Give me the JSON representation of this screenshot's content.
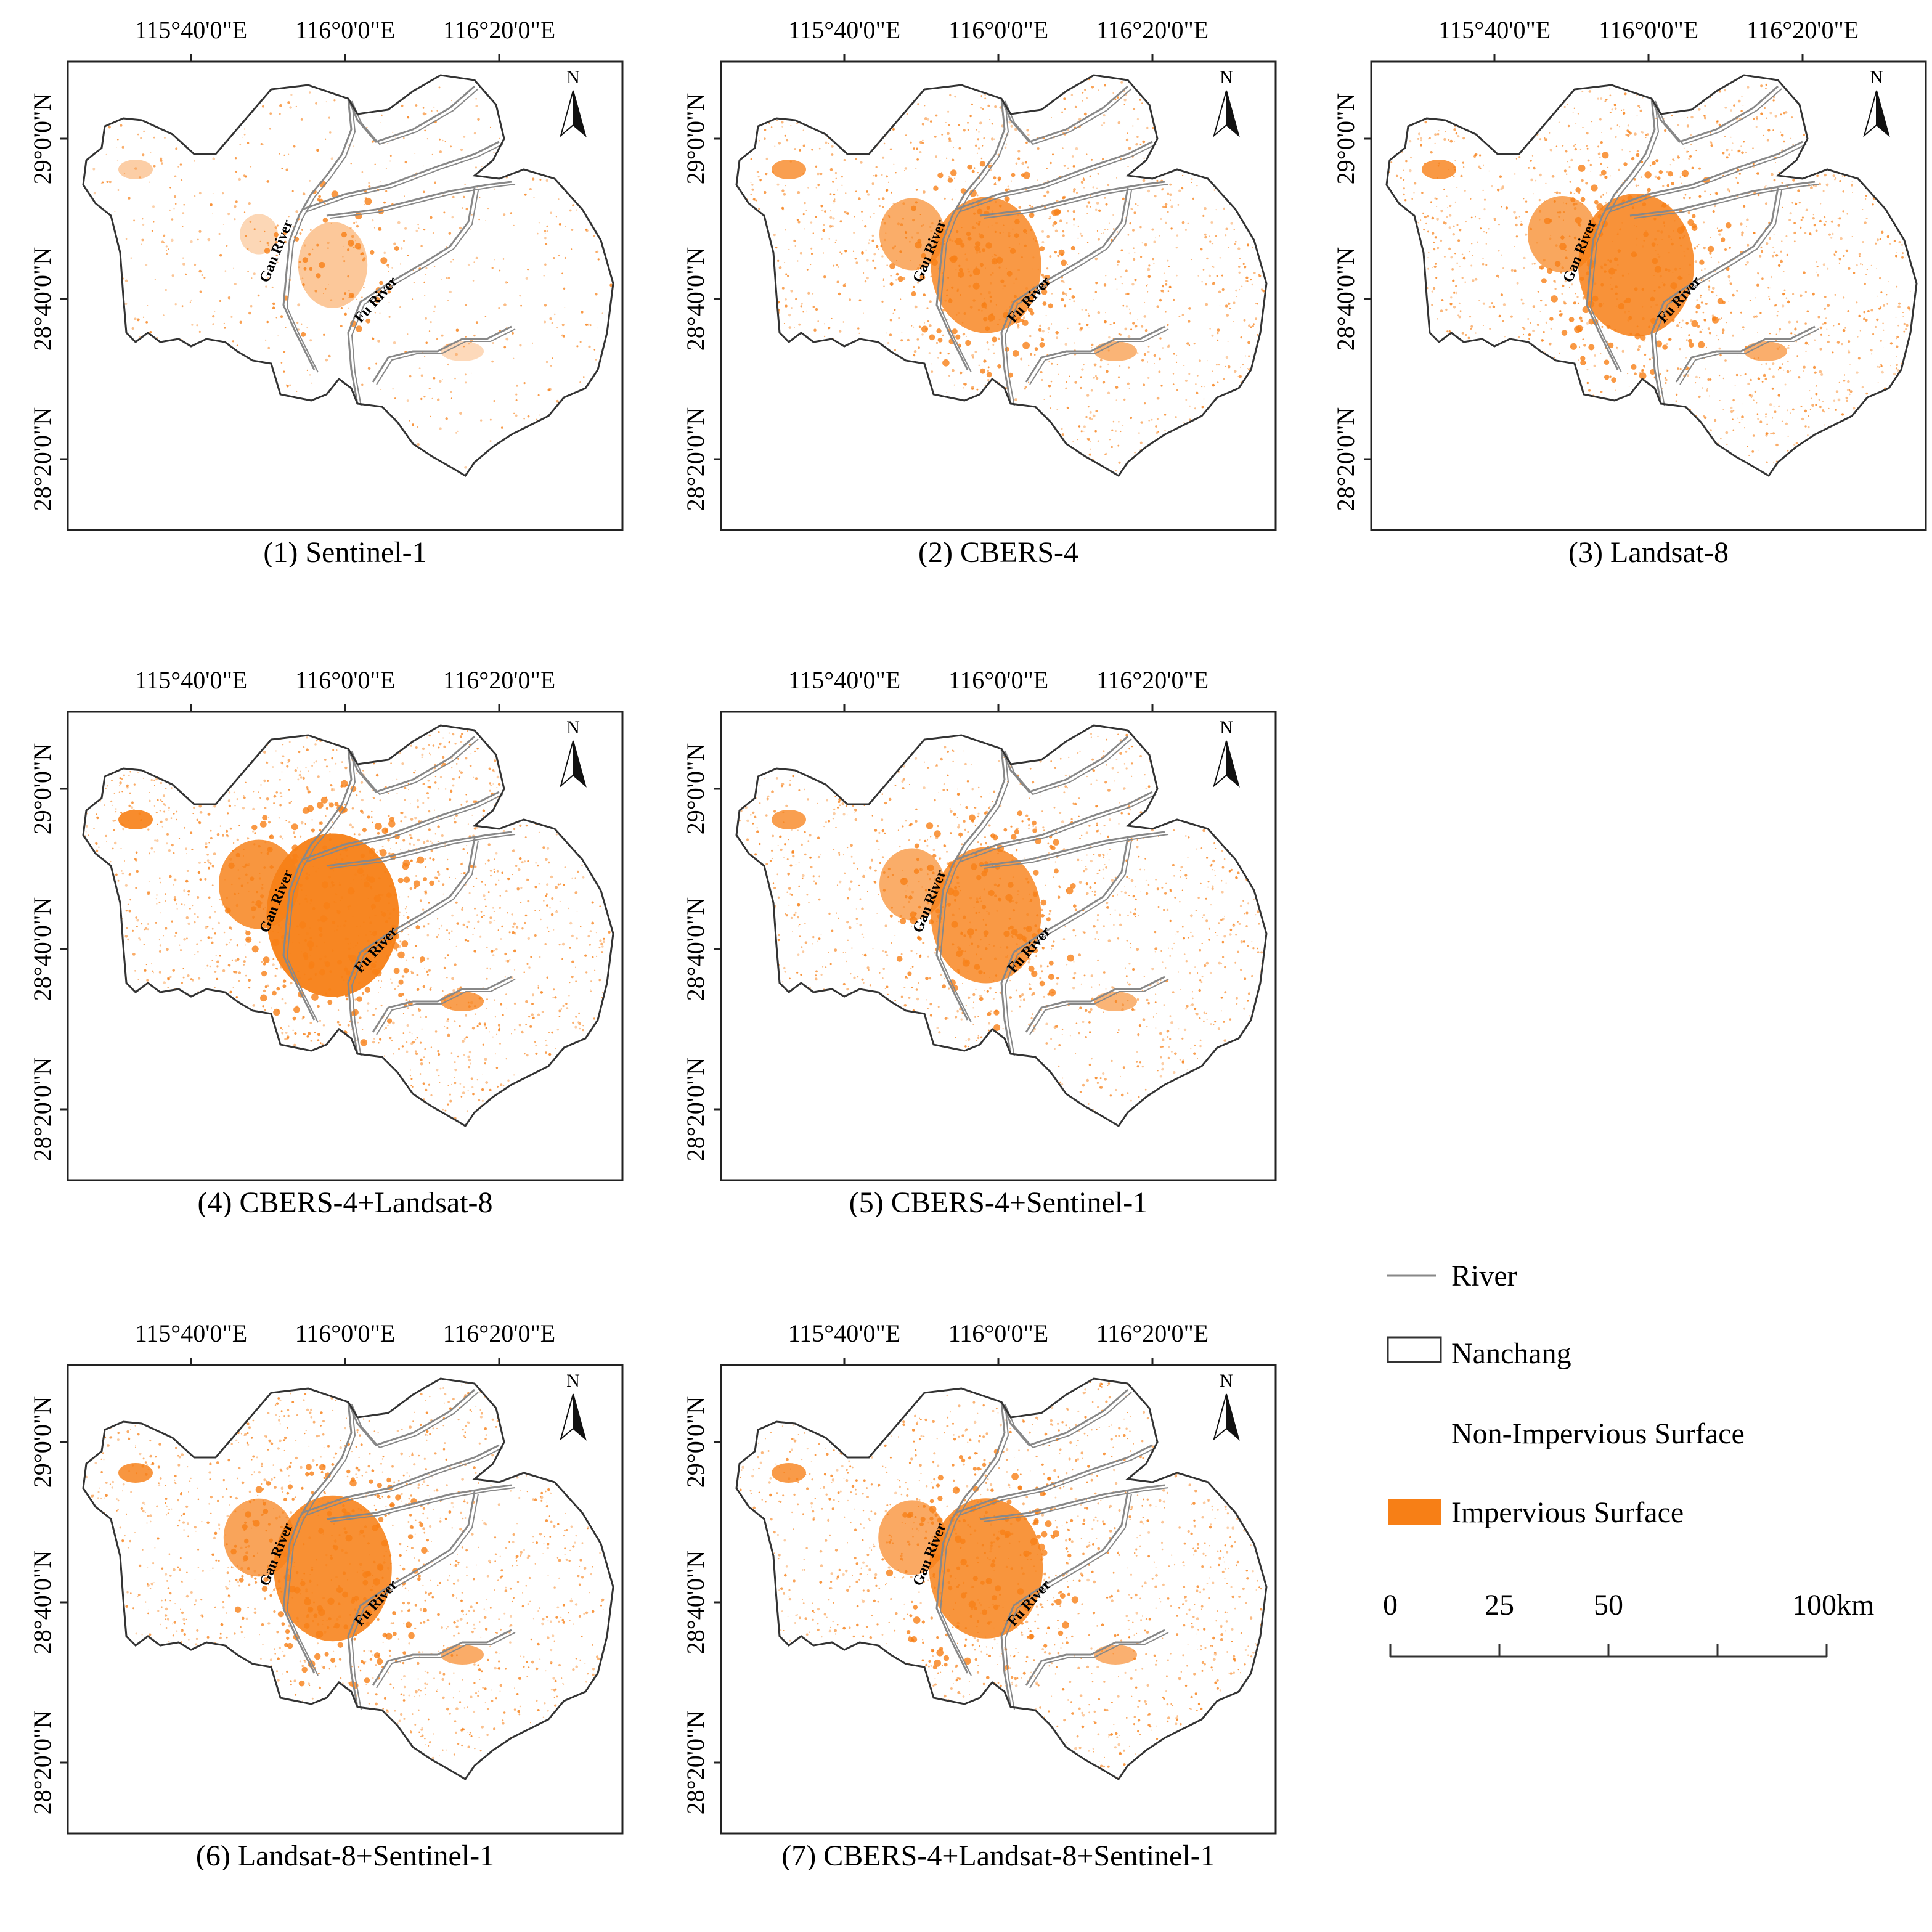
{
  "figure": {
    "lon_ticks": [
      "115°40'0\"E",
      "116°0'0\"E",
      "116°20'0\"E"
    ],
    "lat_ticks": [
      "29°0'0\"N",
      "28°40'0\"N",
      "28°20'0\"N"
    ],
    "north_label": "N",
    "river_labels": {
      "gan": "Gan River",
      "fu": "Fu River"
    },
    "colors": {
      "impervious": "#f77f16",
      "river": "#888888",
      "boundary": "#333333"
    }
  },
  "panels": [
    {
      "id": 1,
      "caption": "(1) Sentinel-1",
      "impervious_density": 0.18
    },
    {
      "id": 2,
      "caption": "(2) CBERS-4",
      "impervious_density": 0.55
    },
    {
      "id": 3,
      "caption": "(3) Landsat-8",
      "impervious_density": 0.6
    },
    {
      "id": 4,
      "caption": "(4) CBERS-4+Landsat-8",
      "impervious_density": 0.75
    },
    {
      "id": 5,
      "caption": "(5) CBERS-4+Sentinel-1",
      "impervious_density": 0.55
    },
    {
      "id": 6,
      "caption": "(6) Landsat-8+Sentinel-1",
      "impervious_density": 0.62
    },
    {
      "id": 7,
      "caption": "(7) CBERS-4+Landsat-8+Sentinel-1",
      "impervious_density": 0.58
    }
  ],
  "legend": {
    "river": "River",
    "nanchang": "Nanchang",
    "non_impervious": "Non-Impervious Surface",
    "impervious": "Impervious Surface",
    "scale_labels": [
      "0",
      "25",
      "50",
      "100"
    ],
    "scale_unit": "km"
  }
}
